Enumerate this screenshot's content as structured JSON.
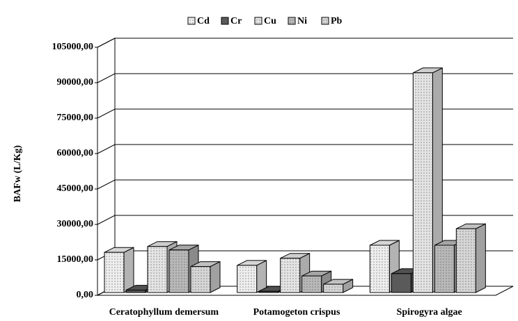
{
  "chart_data": {
    "type": "bar3d",
    "y_label": "BAFw (L/Kg)",
    "categories": [
      "Ceratophyllum demersum",
      "Potamogeton crispus",
      "Spirogyra algae"
    ],
    "series": [
      {
        "name": "Cd",
        "color": "#eeeeee",
        "values": [
          17000,
          11500,
          20000
        ]
      },
      {
        "name": "Cr",
        "color": "#5a5a5a",
        "values": [
          1000,
          500,
          8000
        ]
      },
      {
        "name": "Cu",
        "color": "#e4e4e4",
        "values": [
          19500,
          14500,
          93000
        ]
      },
      {
        "name": "Ni",
        "color": "#b8b8b8",
        "values": [
          18000,
          7000,
          20000
        ]
      },
      {
        "name": "Pb",
        "color": "#d6d6d6",
        "values": [
          11000,
          3500,
          27000
        ]
      }
    ],
    "ylim": [
      0,
      105000
    ],
    "yticks": [
      {
        "value": 0,
        "label": "0,00"
      },
      {
        "value": 15000,
        "label": "15000,00"
      },
      {
        "value": 30000,
        "label": "30000,00"
      },
      {
        "value": 45000,
        "label": "45000,00"
      },
      {
        "value": 60000,
        "label": "60000,00"
      },
      {
        "value": 75000,
        "label": "75000,00"
      },
      {
        "value": 90000,
        "label": "90000,00"
      },
      {
        "value": 105000,
        "label": "105000,00"
      }
    ],
    "grid": true,
    "legend": "top"
  }
}
